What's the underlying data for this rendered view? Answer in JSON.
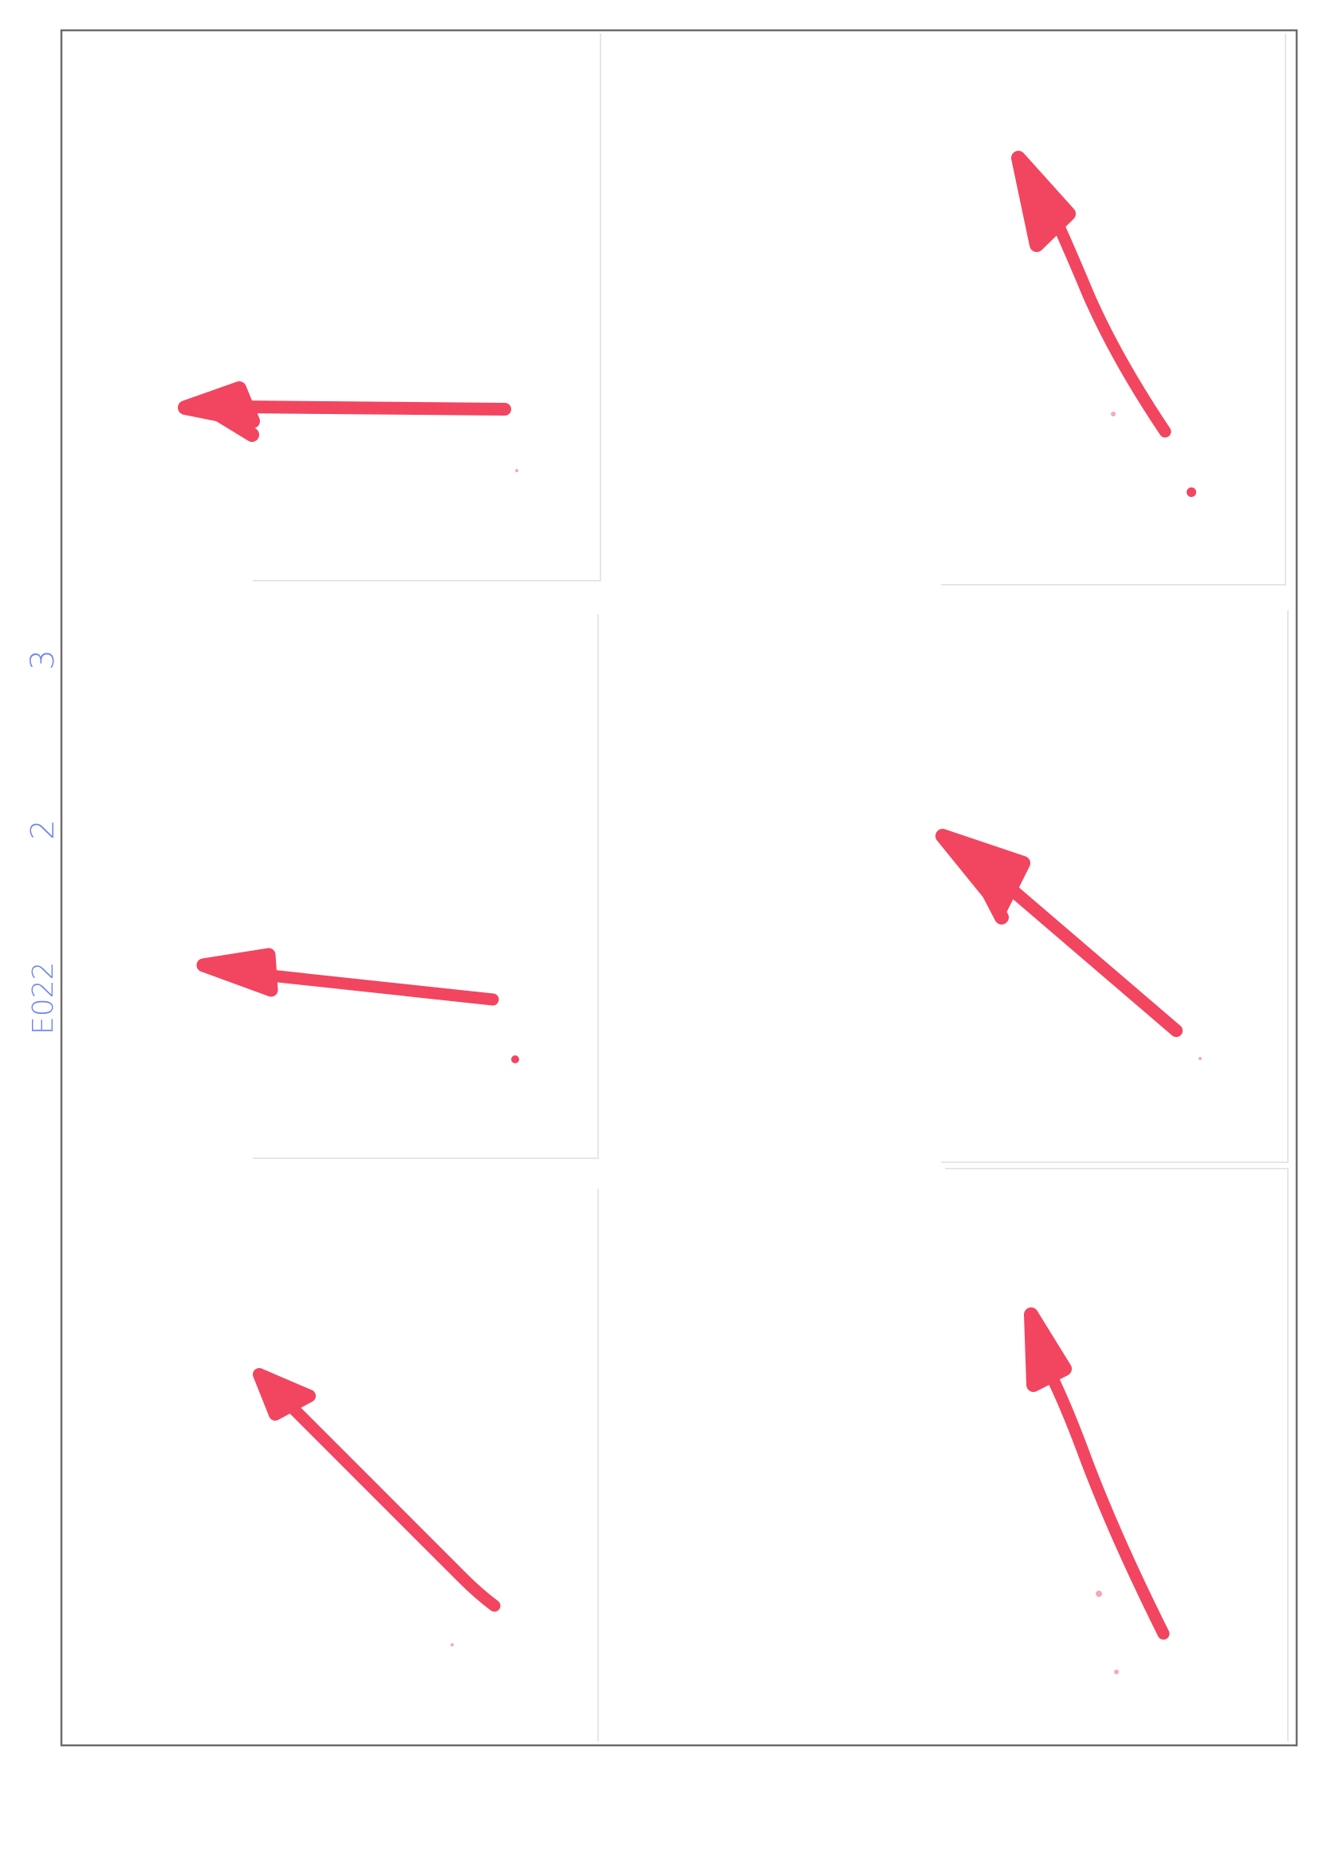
{
  "colors": {
    "ink_red": "#f2455f",
    "ink_red_dark": "#e8304e",
    "margin_note_blue": "#6f86f0",
    "frame_border": "#6b6b6b",
    "card_edge": "#e6e6e6"
  },
  "margin_notes": {
    "code": "E022",
    "first_number": "2",
    "second_number": "3"
  },
  "stimuli": [
    {
      "id": "top-left",
      "direction": "left"
    },
    {
      "id": "top-right",
      "direction": "up-left-steep"
    },
    {
      "id": "middle-left",
      "direction": "left-slightly-up"
    },
    {
      "id": "middle-right",
      "direction": "up-left"
    },
    {
      "id": "bottom-left",
      "direction": "up-left"
    },
    {
      "id": "bottom-right",
      "direction": "up-left-steep"
    }
  ]
}
